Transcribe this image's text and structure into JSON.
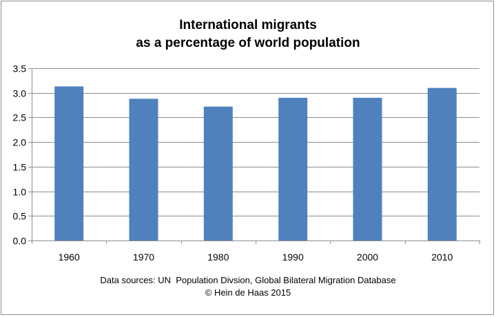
{
  "chart_data": {
    "type": "bar",
    "title": [
      "International migrants",
      "as a percentage of world population"
    ],
    "categories": [
      "1960",
      "1970",
      "1980",
      "1990",
      "2000",
      "2010"
    ],
    "values": [
      3.13,
      2.88,
      2.72,
      2.9,
      2.9,
      3.1
    ],
    "ylim": [
      0,
      3.5
    ],
    "yticks": [
      "0.0",
      "0.5",
      "1.0",
      "1.5",
      "2.0",
      "2.5",
      "3.0",
      "3.5"
    ],
    "xlabel": "",
    "ylabel": "",
    "grid": true,
    "bar_color": "#4f81bd"
  },
  "footer": {
    "source_line": "Data sources: UN  Population Divsion, Global Bilateral Migration Database",
    "credit_line": "© Hein de Haas 2015"
  }
}
